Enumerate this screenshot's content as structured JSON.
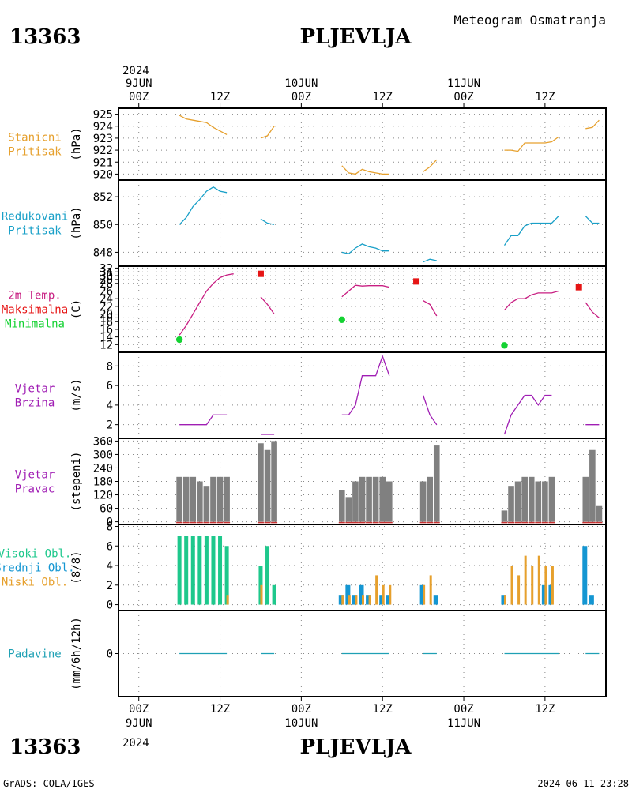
{
  "header": {
    "station_id": "13363",
    "station_name": "PLJEVLJA",
    "title": "Meteogram Osmatranja"
  },
  "footer": {
    "station_id": "13363",
    "station_name": "PLJEVLJA",
    "credit": "GrADS: COLA/IGES",
    "timestamp": "2024-06-11-23:28"
  },
  "time_axis": {
    "top_year": "2024",
    "bottom_year": "2024",
    "ticks": [
      {
        "t": 0,
        "label": "00Z",
        "date": "9JUN"
      },
      {
        "t": 12,
        "label": "12Z",
        "date": ""
      },
      {
        "t": 24,
        "label": "00Z",
        "date": "10JUN"
      },
      {
        "t": 36,
        "label": "12Z",
        "date": ""
      },
      {
        "t": 48,
        "label": "00Z",
        "date": "11JUN"
      },
      {
        "t": 60,
        "label": "12Z",
        "date": ""
      }
    ],
    "range_hours": [
      -3,
      69
    ]
  },
  "colors": {
    "station_pressure": "#E6A02D",
    "reduced_pressure": "#19A0C8",
    "temperature": "#C81E82",
    "t_max": "#E61414",
    "t_min": "#14D232",
    "wind": "#A01EB4",
    "wind_dir_bar": "#808080",
    "wind_dir_base": "#C83232",
    "cloud_high": "#1EC88C",
    "cloud_mid": "#1496D2",
    "cloud_low": "#E6A02D",
    "precip": "#1EA0B4",
    "grid": "#888888"
  },
  "chart_data": [
    {
      "type": "line",
      "panel": "station_pressure",
      "labels": [
        "Stanicni",
        "Pritisak"
      ],
      "ylabel": "(hPa)",
      "ylim": [
        919.5,
        925.5
      ],
      "yticks": [
        920,
        921,
        922,
        923,
        924,
        925
      ],
      "segments": [
        [
          [
            6,
            924.9
          ],
          [
            7,
            924.6
          ],
          [
            8,
            924.5
          ],
          [
            9,
            924.4
          ],
          [
            10,
            924.3
          ],
          [
            11,
            923.9
          ],
          [
            12,
            923.6
          ],
          [
            13,
            923.3
          ]
        ],
        [
          [
            18,
            923.0
          ],
          [
            19,
            923.2
          ],
          [
            20,
            924.0
          ]
        ],
        [
          [
            30,
            920.7
          ],
          [
            31,
            920.1
          ],
          [
            32,
            920.0
          ],
          [
            33,
            920.4
          ],
          [
            34,
            920.2
          ],
          [
            35,
            920.1
          ],
          [
            36,
            920.0
          ],
          [
            37,
            920.0
          ]
        ],
        [
          [
            42,
            920.2
          ],
          [
            43,
            920.6
          ],
          [
            44,
            921.2
          ]
        ],
        [
          [
            54,
            922.0
          ],
          [
            55,
            922.0
          ],
          [
            56,
            921.9
          ],
          [
            57,
            922.6
          ],
          [
            58,
            922.6
          ],
          [
            59,
            922.6
          ],
          [
            60,
            922.6
          ],
          [
            61,
            922.7
          ],
          [
            62,
            923.1
          ]
        ],
        [
          [
            66,
            923.8
          ],
          [
            67,
            923.9
          ],
          [
            68,
            924.5
          ]
        ]
      ]
    },
    {
      "type": "line",
      "panel": "reduced_pressure",
      "labels": [
        "Redukovani",
        "Pritisak"
      ],
      "ylabel": "(hPa)",
      "ylim": [
        847.0,
        853.2
      ],
      "yticks": [
        848,
        850,
        852
      ],
      "segments": [
        [
          [
            6,
            850.0
          ],
          [
            7,
            850.5
          ],
          [
            8,
            851.3
          ],
          [
            9,
            851.8
          ],
          [
            10,
            852.4
          ],
          [
            11,
            852.7
          ],
          [
            12,
            852.4
          ],
          [
            13,
            852.3
          ]
        ],
        [
          [
            18,
            850.4
          ],
          [
            19,
            850.1
          ],
          [
            20,
            850.0
          ]
        ],
        [
          [
            30,
            848.0
          ],
          [
            31,
            847.9
          ],
          [
            32,
            848.3
          ],
          [
            33,
            848.6
          ],
          [
            34,
            848.4
          ],
          [
            35,
            848.3
          ],
          [
            36,
            848.1
          ],
          [
            37,
            848.1
          ]
        ],
        [
          [
            42,
            847.3
          ],
          [
            43,
            847.5
          ],
          [
            44,
            847.4
          ]
        ],
        [
          [
            54,
            848.5
          ],
          [
            55,
            849.2
          ],
          [
            56,
            849.2
          ],
          [
            57,
            849.9
          ],
          [
            58,
            850.1
          ],
          [
            59,
            850.1
          ],
          [
            60,
            850.1
          ],
          [
            61,
            850.1
          ],
          [
            62,
            850.6
          ]
        ],
        [
          [
            66,
            850.6
          ],
          [
            67,
            850.1
          ],
          [
            68,
            850.1
          ]
        ]
      ]
    },
    {
      "type": "line",
      "panel": "temperature",
      "labels": [
        "2m Temp.",
        "Maksimalna",
        "Minimalna"
      ],
      "ylabel": "(C)",
      "ylim": [
        10,
        32.5
      ],
      "yticks": [
        12,
        14,
        16,
        18,
        19,
        20,
        22,
        24,
        26,
        28,
        29,
        30,
        31,
        32
      ],
      "segments": [
        [
          [
            6,
            14.5
          ],
          [
            7,
            17.0
          ],
          [
            8,
            20.0
          ],
          [
            9,
            23.0
          ],
          [
            10,
            26.0
          ],
          [
            11,
            28.0
          ],
          [
            12,
            29.5
          ],
          [
            13,
            30.2
          ],
          [
            14,
            30.5
          ]
        ],
        [
          [
            18,
            24.5
          ],
          [
            19,
            22.5
          ],
          [
            20,
            20.0
          ]
        ],
        [
          [
            30,
            24.5
          ],
          [
            31,
            26.0
          ],
          [
            32,
            27.5
          ],
          [
            33,
            27.3
          ],
          [
            34,
            27.4
          ],
          [
            35,
            27.4
          ],
          [
            36,
            27.4
          ],
          [
            37,
            27.0
          ]
        ],
        [
          [
            42,
            23.5
          ],
          [
            43,
            22.5
          ],
          [
            44,
            19.5
          ]
        ],
        [
          [
            54,
            21.0
          ],
          [
            55,
            23.0
          ],
          [
            56,
            24.0
          ],
          [
            57,
            24.0
          ],
          [
            58,
            25.0
          ],
          [
            59,
            25.5
          ],
          [
            60,
            25.5
          ],
          [
            61,
            25.5
          ],
          [
            62,
            26.0
          ]
        ],
        [
          [
            66,
            23.0
          ],
          [
            67,
            20.5
          ],
          [
            68,
            19.0
          ]
        ]
      ],
      "max_points": [
        [
          18,
          30.5
        ],
        [
          41,
          28.5
        ],
        [
          65,
          27.0
        ]
      ],
      "min_points": [
        [
          6,
          13.3
        ],
        [
          30,
          18.5
        ],
        [
          54,
          11.8
        ]
      ]
    },
    {
      "type": "line",
      "panel": "wind_speed",
      "labels": [
        "Vjetar",
        "Brzina"
      ],
      "ylabel": "(m/s)",
      "ylim": [
        0.6,
        9.4
      ],
      "yticks": [
        2,
        4,
        6,
        8
      ],
      "segments": [
        [
          [
            6,
            2
          ],
          [
            7,
            2
          ],
          [
            8,
            2
          ],
          [
            9,
            2
          ],
          [
            10,
            2
          ],
          [
            11,
            3
          ],
          [
            12,
            3
          ],
          [
            13,
            3
          ]
        ],
        [
          [
            18,
            1
          ],
          [
            19,
            1
          ],
          [
            20,
            1
          ]
        ],
        [
          [
            30,
            3
          ],
          [
            31,
            3
          ],
          [
            32,
            4
          ],
          [
            33,
            7
          ],
          [
            34,
            7
          ],
          [
            35,
            7
          ],
          [
            36,
            9
          ],
          [
            37,
            7
          ]
        ],
        [
          [
            42,
            5
          ],
          [
            43,
            3
          ],
          [
            44,
            2
          ]
        ],
        [
          [
            54,
            1
          ],
          [
            55,
            3
          ],
          [
            56,
            4
          ],
          [
            57,
            5
          ],
          [
            58,
            5
          ],
          [
            59,
            4
          ],
          [
            60,
            5
          ],
          [
            61,
            5
          ]
        ],
        [
          [
            66,
            2
          ],
          [
            67,
            2
          ],
          [
            68,
            2
          ]
        ]
      ]
    },
    {
      "type": "bar",
      "panel": "wind_direction",
      "labels": [
        "Vjetar",
        "Pravac"
      ],
      "ylabel": "(stepeni)",
      "ylim": [
        -12,
        372
      ],
      "yticks": [
        0,
        60,
        120,
        180,
        240,
        300,
        360
      ],
      "bars": [
        [
          6,
          200
        ],
        [
          7,
          200
        ],
        [
          8,
          200
        ],
        [
          9,
          180
        ],
        [
          10,
          160
        ],
        [
          11,
          200
        ],
        [
          12,
          200
        ],
        [
          13,
          200
        ],
        [
          18,
          350
        ],
        [
          19,
          320
        ],
        [
          20,
          360
        ],
        [
          30,
          140
        ],
        [
          31,
          110
        ],
        [
          32,
          180
        ],
        [
          33,
          200
        ],
        [
          34,
          200
        ],
        [
          35,
          200
        ],
        [
          36,
          200
        ],
        [
          37,
          180
        ],
        [
          42,
          180
        ],
        [
          43,
          200
        ],
        [
          44,
          340
        ],
        [
          54,
          50
        ],
        [
          55,
          160
        ],
        [
          56,
          180
        ],
        [
          57,
          200
        ],
        [
          58,
          200
        ],
        [
          59,
          180
        ],
        [
          60,
          180
        ],
        [
          61,
          200
        ],
        [
          66,
          200
        ],
        [
          67,
          320
        ],
        [
          68,
          70
        ]
      ]
    },
    {
      "type": "bar",
      "panel": "clouds",
      "labels": [
        "Visoki Obl.",
        "Srednji Obl.",
        "Niski Obl."
      ],
      "ylabel": "(8/8)",
      "ylim": [
        -0.6,
        8.2
      ],
      "yticks": [
        0,
        2,
        4,
        6,
        8
      ],
      "series": [
        {
          "key": "high",
          "values": [
            [
              6,
              7
            ],
            [
              7,
              7
            ],
            [
              8,
              7
            ],
            [
              9,
              7
            ],
            [
              10,
              7
            ],
            [
              11,
              7
            ],
            [
              12,
              7
            ],
            [
              13,
              6
            ],
            [
              18,
              4
            ],
            [
              19,
              6
            ],
            [
              20,
              2
            ]
          ]
        },
        {
          "key": "mid",
          "values": [
            [
              30,
              1
            ],
            [
              31,
              2
            ],
            [
              32,
              1
            ],
            [
              33,
              2
            ],
            [
              34,
              1
            ],
            [
              36,
              1
            ],
            [
              37,
              1
            ],
            [
              42,
              2
            ],
            [
              44,
              1
            ],
            [
              54,
              1
            ],
            [
              60,
              2
            ],
            [
              61,
              2
            ],
            [
              66,
              6
            ],
            [
              67,
              1
            ]
          ]
        },
        {
          "key": "low",
          "values": [
            [
              13,
              1
            ],
            [
              18,
              2
            ],
            [
              30,
              1
            ],
            [
              31,
              1
            ],
            [
              32,
              1
            ],
            [
              33,
              1
            ],
            [
              34,
              1
            ],
            [
              35,
              3
            ],
            [
              36,
              2
            ],
            [
              37,
              2
            ],
            [
              42,
              2
            ],
            [
              43,
              3
            ],
            [
              54,
              1
            ],
            [
              55,
              4
            ],
            [
              56,
              3
            ],
            [
              57,
              5
            ],
            [
              58,
              4
            ],
            [
              59,
              5
            ],
            [
              60,
              4
            ],
            [
              61,
              4
            ]
          ]
        }
      ]
    },
    {
      "type": "line",
      "panel": "precipitation",
      "labels": [
        "Padavine"
      ],
      "ylabel": "(mm/6h/12h)",
      "ylim": [
        -1,
        1
      ],
      "yticks": [
        0
      ],
      "segments": [
        [
          [
            6,
            0
          ],
          [
            13,
            0
          ]
        ],
        [
          [
            18,
            0
          ],
          [
            20,
            0
          ]
        ],
        [
          [
            30,
            0
          ],
          [
            37,
            0
          ]
        ],
        [
          [
            42,
            0
          ],
          [
            44,
            0
          ]
        ],
        [
          [
            54,
            0
          ],
          [
            62,
            0
          ]
        ],
        [
          [
            66,
            0
          ],
          [
            68,
            0
          ]
        ]
      ]
    }
  ]
}
